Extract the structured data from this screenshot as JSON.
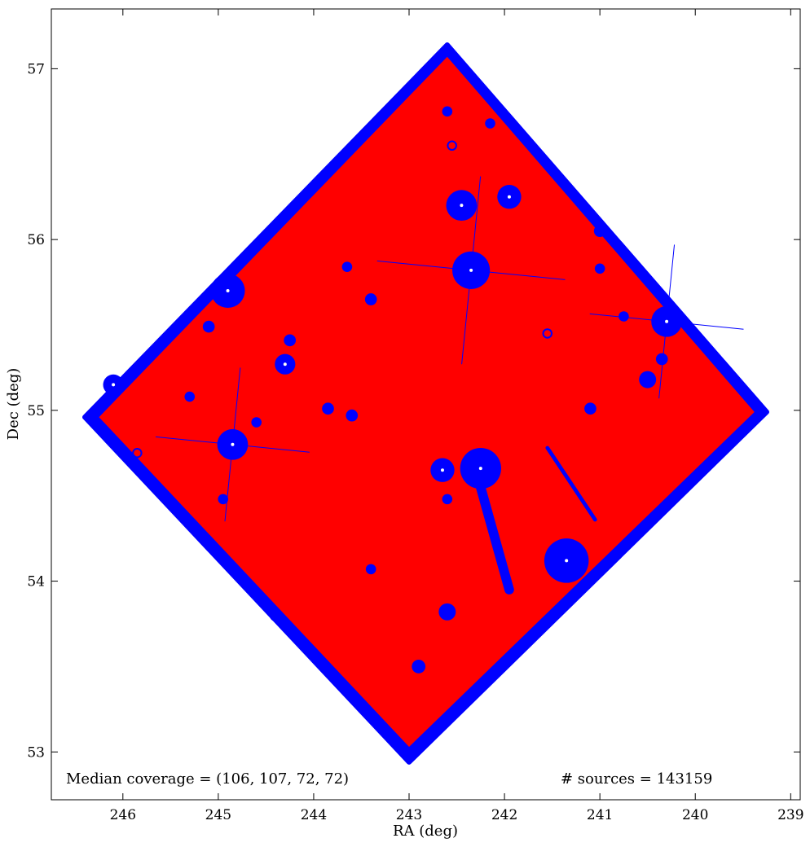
{
  "chart_data": {
    "type": "scatter",
    "xlabel": "RA (deg)",
    "ylabel": "Dec (deg)",
    "xlim": [
      246.75,
      238.9
    ],
    "ylim": [
      52.72,
      57.35
    ],
    "x_inverted": true,
    "xticks": [
      246,
      245,
      244,
      243,
      242,
      241,
      240,
      239
    ],
    "yticks": [
      53,
      54,
      55,
      56,
      57
    ],
    "grid": false,
    "series": [
      {
        "color": "#0000ff",
        "marker": "circle",
        "region": "square footprint, outer edge",
        "footprint": [
          [
            242.6,
            57.14
          ],
          [
            239.25,
            54.99
          ],
          [
            243.0,
            52.94
          ],
          [
            246.4,
            54.96
          ]
        ]
      },
      {
        "color": "#ff0000",
        "marker": "circle",
        "region": "square footprint, interior",
        "footprint": [
          [
            242.6,
            57.07
          ],
          [
            239.38,
            54.99
          ],
          [
            243.0,
            53.03
          ],
          [
            246.25,
            54.96
          ]
        ]
      }
    ],
    "masked_regions": [
      {
        "ra": 242.35,
        "dec": 55.82,
        "r": 0.11,
        "spikes": true
      },
      {
        "ra": 242.45,
        "dec": 56.2,
        "r": 0.09
      },
      {
        "ra": 241.95,
        "dec": 56.25,
        "r": 0.07
      },
      {
        "ra": 244.9,
        "dec": 55.7,
        "r": 0.1
      },
      {
        "ra": 240.3,
        "dec": 55.52,
        "r": 0.09,
        "spikes": true
      },
      {
        "ra": 244.85,
        "dec": 54.8,
        "r": 0.09,
        "spikes": true
      },
      {
        "ra": 242.25,
        "dec": 54.66,
        "r": 0.12
      },
      {
        "ra": 241.35,
        "dec": 54.12,
        "r": 0.13
      },
      {
        "ra": 242.65,
        "dec": 54.65,
        "r": 0.07
      },
      {
        "ra": 244.3,
        "dec": 55.27,
        "r": 0.06
      },
      {
        "ra": 240.5,
        "dec": 55.18,
        "r": 0.05
      },
      {
        "ra": 242.6,
        "dec": 53.82,
        "r": 0.05
      },
      {
        "ra": 242.9,
        "dec": 53.5,
        "r": 0.04
      },
      {
        "ra": 245.1,
        "dec": 55.49,
        "r": 0.035
      },
      {
        "ra": 246.1,
        "dec": 55.15,
        "r": 0.06
      },
      {
        "ra": 243.85,
        "dec": 55.01,
        "r": 0.035
      },
      {
        "ra": 243.6,
        "dec": 54.97,
        "r": 0.035
      },
      {
        "ra": 244.25,
        "dec": 55.41,
        "r": 0.035
      },
      {
        "ra": 240.35,
        "dec": 55.3,
        "r": 0.035
      },
      {
        "ra": 241.1,
        "dec": 55.01,
        "r": 0.035
      },
      {
        "ra": 240.75,
        "dec": 55.55,
        "r": 0.03
      },
      {
        "ra": 241.0,
        "dec": 55.83,
        "r": 0.03
      },
      {
        "ra": 241.0,
        "dec": 56.05,
        "r": 0.035
      },
      {
        "ra": 243.4,
        "dec": 55.65,
        "r": 0.035
      },
      {
        "ra": 243.65,
        "dec": 55.84,
        "r": 0.03
      },
      {
        "ra": 244.95,
        "dec": 54.48,
        "r": 0.03
      },
      {
        "ra": 244.4,
        "dec": 53.8,
        "r": 0.035
      },
      {
        "ra": 244.6,
        "dec": 54.93,
        "r": 0.03
      },
      {
        "ra": 242.6,
        "dec": 54.48,
        "r": 0.03
      },
      {
        "ra": 242.6,
        "dec": 56.75,
        "r": 0.03
      },
      {
        "ra": 242.15,
        "dec": 56.68,
        "r": 0.03
      },
      {
        "ra": 243.4,
        "dec": 54.07,
        "r": 0.03
      },
      {
        "ra": 242.55,
        "dec": 56.55,
        "r": 0.025
      },
      {
        "ra": 245.85,
        "dec": 54.75,
        "r": 0.025
      },
      {
        "ra": 245.3,
        "dec": 55.08,
        "r": 0.03
      },
      {
        "ra": 241.55,
        "dec": 55.45,
        "r": 0.025
      }
    ],
    "masked_streaks": [
      {
        "from": [
          242.25,
          54.55
        ],
        "to": [
          241.95,
          53.95
        ],
        "w": 0.1
      },
      {
        "from": [
          241.55,
          54.78
        ],
        "to": [
          241.05,
          54.36
        ],
        "w": 0.04
      }
    ],
    "annotations": [
      "Median coverage = (106, 107, 72, 72)",
      "# sources = 143159"
    ]
  }
}
